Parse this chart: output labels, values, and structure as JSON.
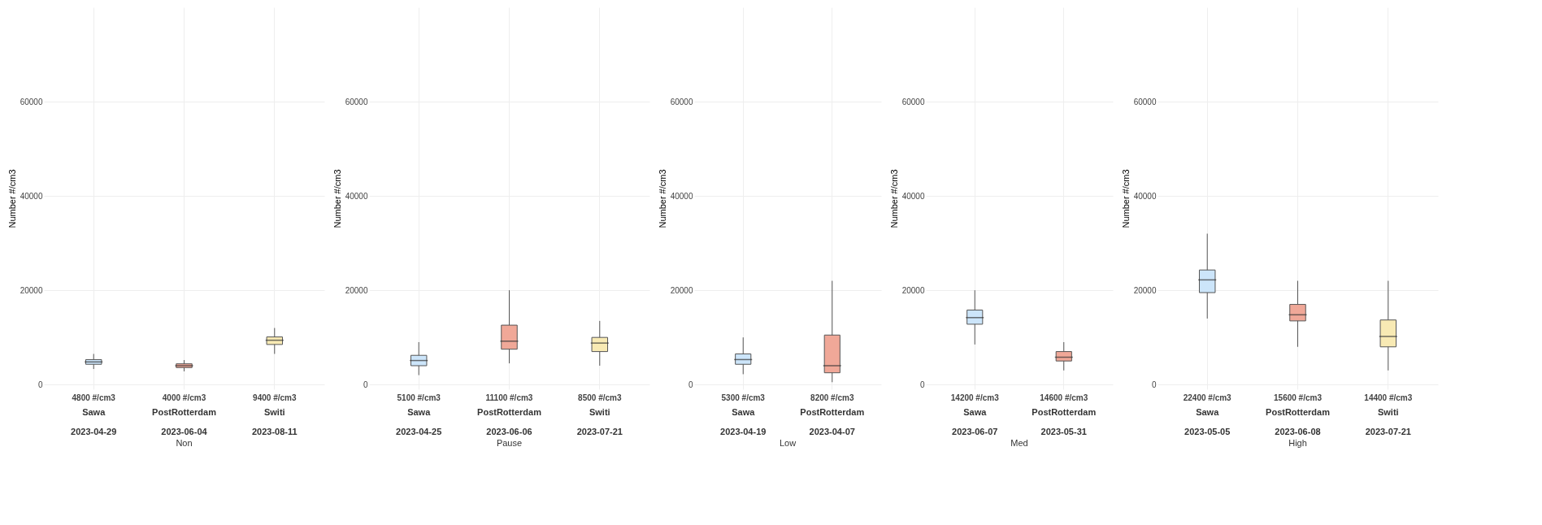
{
  "chart_data": [
    {
      "type": "box",
      "title": "Non",
      "ylabel": "Number #/cm3",
      "categories": [
        "Sawa\n2023-04-29",
        "PostRotterdam\n2023-06-04",
        "Switi\n2023-08-11"
      ],
      "colors": [
        "#cce5fa",
        "#f0a898",
        "#f8eab4"
      ],
      "boxes": [
        {
          "low": 3300,
          "q1": 4300,
          "median": 4800,
          "q3": 5300,
          "high": 6500
        },
        {
          "low": 2800,
          "q1": 3600,
          "median": 4000,
          "q3": 4400,
          "high": 5200
        },
        {
          "low": 6500,
          "q1": 8500,
          "median": 9400,
          "q3": 10100,
          "high": 12000
        }
      ],
      "annotations": [
        "4800 #/cm3",
        "4000 #/cm3",
        "9400 #/cm3"
      ],
      "ylim": [
        -1000,
        80000
      ],
      "yticks": [
        0,
        20000,
        40000,
        60000
      ],
      "grid": true
    },
    {
      "type": "box",
      "title": "Pause",
      "ylabel": "Number #/cm3",
      "categories": [
        "Sawa\n2023-04-25",
        "PostRotterdam\n2023-06-06",
        "Switi\n2023-07-21"
      ],
      "colors": [
        "#cce5fa",
        "#f0a898",
        "#f8eab4"
      ],
      "boxes": [
        {
          "low": 2000,
          "q1": 4000,
          "median": 5100,
          "q3": 6200,
          "high": 9000
        },
        {
          "low": 4500,
          "q1": 7500,
          "median": 9200,
          "q3": 12600,
          "high": 20000
        },
        {
          "low": 4000,
          "q1": 7000,
          "median": 8800,
          "q3": 10000,
          "high": 13500
        }
      ],
      "annotations": [
        "5100 #/cm3",
        "11100 #/cm3",
        "8500 #/cm3"
      ],
      "ylim": [
        -1000,
        80000
      ],
      "yticks": [
        0,
        20000,
        40000,
        60000
      ],
      "grid": true
    },
    {
      "type": "box",
      "title": "Low",
      "ylabel": "Number #/cm3",
      "categories": [
        "Sawa\n2023-04-19",
        "PostRotterdam\n2023-04-07"
      ],
      "colors": [
        "#cce5fa",
        "#f0a898"
      ],
      "boxes": [
        {
          "low": 2200,
          "q1": 4300,
          "median": 5300,
          "q3": 6500,
          "high": 10000
        },
        {
          "low": 500,
          "q1": 2500,
          "median": 4000,
          "q3": 10500,
          "high": 22000
        }
      ],
      "annotations": [
        "5300 #/cm3",
        "8200 #/cm3"
      ],
      "ylim": [
        -1000,
        80000
      ],
      "yticks": [
        0,
        20000,
        40000,
        60000
      ],
      "grid": true
    },
    {
      "type": "box",
      "title": "Med",
      "ylabel": "Number #/cm3",
      "categories": [
        "Sawa\n2023-06-07",
        "PostRotterdam\n2023-05-31"
      ],
      "colors": [
        "#cce5fa",
        "#f0a898"
      ],
      "boxes": [
        {
          "low": 8500,
          "q1": 12800,
          "median": 14200,
          "q3": 15800,
          "high": 20000
        },
        {
          "low": 3000,
          "q1": 5000,
          "median": 5800,
          "q3": 7000,
          "high": 9000
        }
      ],
      "annotations": [
        "14200 #/cm3",
        "14600 #/cm3"
      ],
      "ylim": [
        -1000,
        80000
      ],
      "yticks": [
        0,
        20000,
        40000,
        60000
      ],
      "grid": true
    },
    {
      "type": "box",
      "title": "High",
      "ylabel": "Number #/cm3",
      "categories": [
        "Sawa\n2023-05-05",
        "PostRotterdam\n2023-06-08",
        "Switi\n2023-07-21"
      ],
      "colors": [
        "#cce5fa",
        "#f0a898",
        "#f8eab4"
      ],
      "boxes": [
        {
          "low": 14000,
          "q1": 19500,
          "median": 22200,
          "q3": 24300,
          "high": 32000
        },
        {
          "low": 8000,
          "q1": 13500,
          "median": 14800,
          "q3": 17000,
          "high": 22000
        },
        {
          "low": 3000,
          "q1": 8000,
          "median": 10200,
          "q3": 13700,
          "high": 22000
        }
      ],
      "annotations": [
        "22400 #/cm3",
        "15600 #/cm3",
        "14400 #/cm3"
      ],
      "ylim": [
        -1000,
        80000
      ],
      "yticks": [
        0,
        20000,
        40000,
        60000
      ],
      "grid": true
    }
  ]
}
